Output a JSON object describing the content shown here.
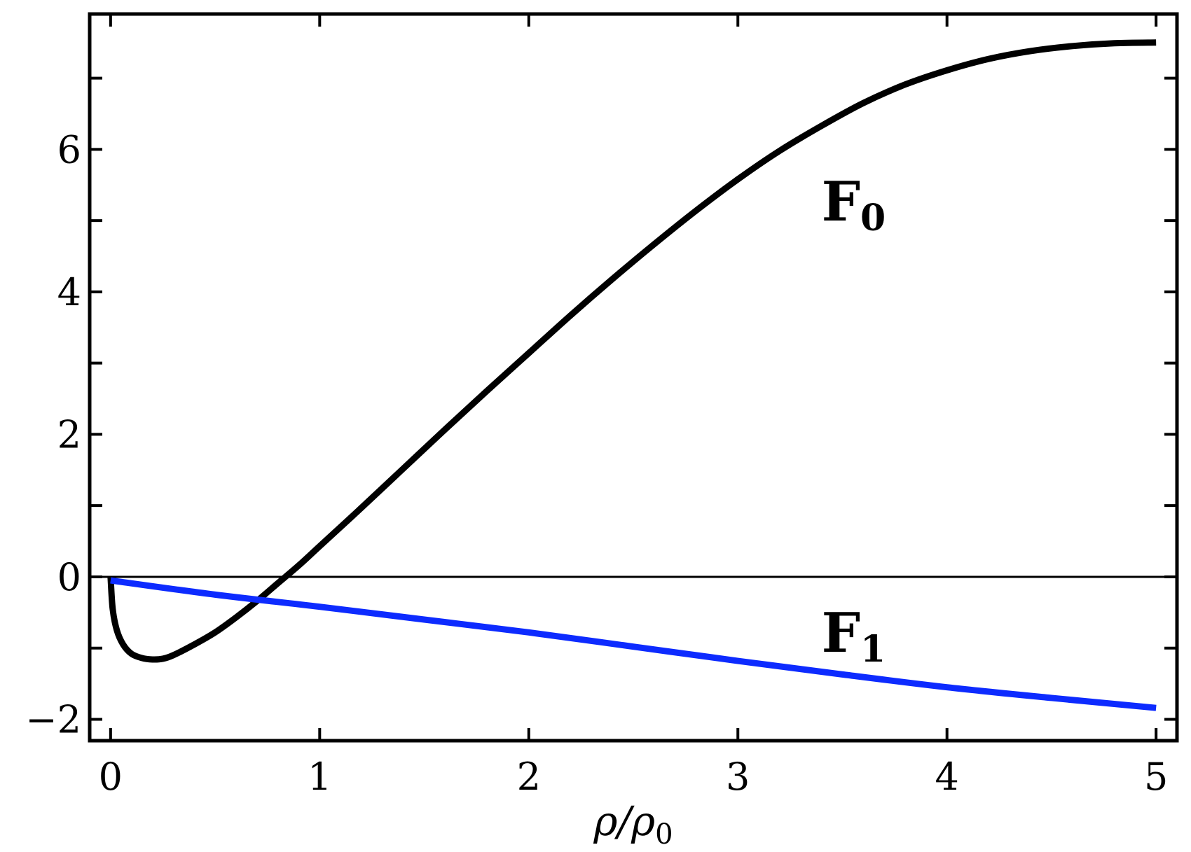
{
  "chart_data": {
    "type": "line",
    "title": "",
    "xlabel": "ρ/ρ",
    "xlabel_sub": "0",
    "ylabel": "",
    "xlim": [
      -0.1,
      5.1
    ],
    "ylim": [
      -2.3,
      7.9
    ],
    "x_ticks": [
      0,
      1,
      2,
      3,
      4,
      5
    ],
    "x_tick_labels": [
      "0",
      "1",
      "2",
      "3",
      "4",
      "5"
    ],
    "y_ticks": [
      -2,
      0,
      2,
      4,
      6
    ],
    "y_tick_labels": [
      "−2",
      "0",
      "2",
      "4",
      "6"
    ],
    "y_minor_ticks": [
      -1,
      1,
      3,
      5,
      7
    ],
    "grid": false,
    "zero_line": true,
    "series": [
      {
        "name": "F",
        "name_sub": "0",
        "color": "#000000",
        "label_at": [
          3.4,
          5.0
        ],
        "x": [
          0.0,
          0.01,
          0.03,
          0.06,
          0.1,
          0.15,
          0.2,
          0.25,
          0.3,
          0.4,
          0.5,
          0.6,
          0.7,
          0.8,
          0.9,
          1.0,
          1.2,
          1.4,
          1.6,
          1.8,
          2.0,
          2.2,
          2.4,
          2.6,
          2.8,
          3.0,
          3.2,
          3.4,
          3.6,
          3.8,
          4.0,
          4.2,
          4.4,
          4.6,
          4.8,
          5.0
        ],
        "y": [
          0.0,
          -0.45,
          -0.75,
          -0.95,
          -1.08,
          -1.14,
          -1.16,
          -1.15,
          -1.1,
          -0.95,
          -0.78,
          -0.57,
          -0.34,
          -0.09,
          0.16,
          0.43,
          0.97,
          1.52,
          2.07,
          2.61,
          3.14,
          3.67,
          4.18,
          4.67,
          5.14,
          5.58,
          5.98,
          6.33,
          6.65,
          6.91,
          7.11,
          7.27,
          7.38,
          7.45,
          7.49,
          7.5
        ]
      },
      {
        "name": "F",
        "name_sub": "1",
        "color": "#0d2bff",
        "label_at": [
          3.4,
          -1.05
        ],
        "x": [
          0.0,
          0.5,
          1.0,
          1.5,
          2.0,
          2.5,
          3.0,
          3.5,
          4.0,
          4.5,
          5.0
        ],
        "y": [
          -0.05,
          -0.25,
          -0.42,
          -0.6,
          -0.78,
          -0.98,
          -1.18,
          -1.37,
          -1.55,
          -1.7,
          -1.84
        ]
      }
    ]
  }
}
